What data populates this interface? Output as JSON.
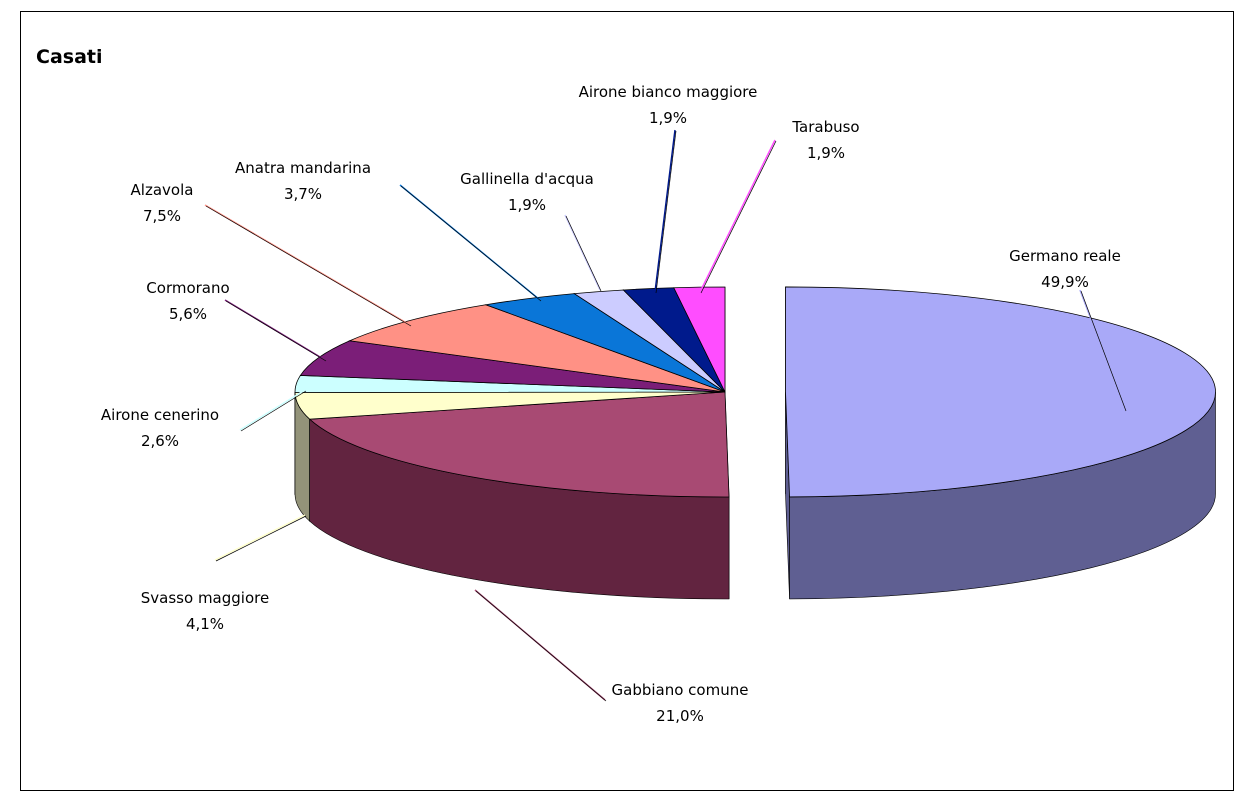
{
  "chart_data": {
    "type": "pie",
    "title": "Casati",
    "slices": [
      {
        "label": "Germano reale",
        "value": 49.9,
        "display": "49,9%",
        "color": "#A9A9F8",
        "side": "#5F5F92"
      },
      {
        "label": "Gabbiano comune",
        "value": 21.0,
        "display": "21,0%",
        "color": "#A84A73",
        "side": "#622440"
      },
      {
        "label": "Svasso maggiore",
        "value": 4.1,
        "display": "4,1%",
        "color": "#FFFFCC",
        "side": "#939379"
      },
      {
        "label": "Airone cenerino",
        "value": 2.6,
        "display": "2,6%",
        "color": "#CCFFFF",
        "side": "#7A9999"
      },
      {
        "label": "Cormorano",
        "value": 5.6,
        "display": "5,6%",
        "color": "#7B1E78",
        "side": "#4A1248"
      },
      {
        "label": "Alzavola",
        "value": 7.5,
        "display": "7,5%",
        "color": "#FF9185",
        "side": "#8A4E48"
      },
      {
        "label": "Anatra mandarina",
        "value": 3.7,
        "display": "3,7%",
        "color": "#0A76D8",
        "side": "#0A4A80"
      },
      {
        "label": "Gallinella d'acqua",
        "value": 1.9,
        "display": "1,9%",
        "color": "#CCCCFF",
        "side": "#7A7A99"
      },
      {
        "label": "Airone bianco maggiore",
        "value": 1.9,
        "display": "1,9%",
        "color": "#001A8C",
        "side": "#00104F"
      },
      {
        "label": "Tarabuso",
        "value": 1.9,
        "display": "1,9%",
        "color": "#FF4DFF",
        "side": "#992E99"
      }
    ]
  }
}
